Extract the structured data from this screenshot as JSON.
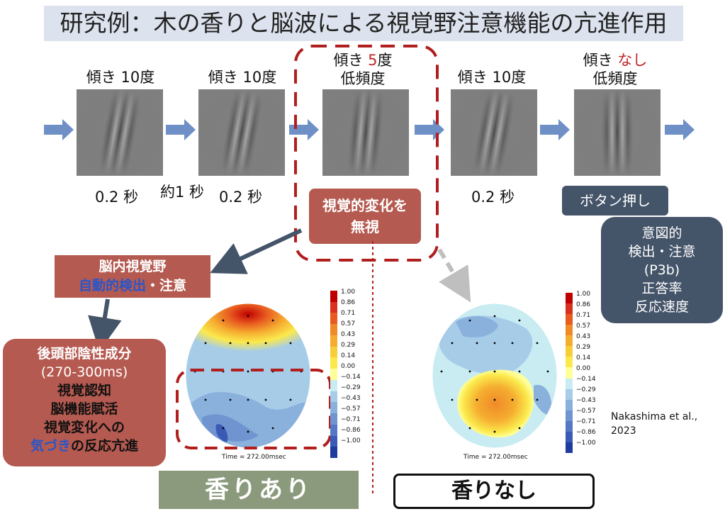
{
  "title": "研究例：木の香りと脳波による視覚野注意機能の亢進作用",
  "stimuli": [
    {
      "caption_prefix": "傾き ",
      "caption_emph": "10",
      "caption_suffix": "度",
      "caption2": ""
    },
    {
      "caption_prefix": "傾き ",
      "caption_emph": "10",
      "caption_suffix": "度",
      "caption2": ""
    },
    {
      "caption_prefix": "傾き ",
      "caption_emph": "5",
      "caption_suffix": "度",
      "caption2": "低頻度"
    },
    {
      "caption_prefix": "傾き ",
      "caption_emph": "10",
      "caption_suffix": "度",
      "caption2": ""
    },
    {
      "caption_prefix": "傾き ",
      "caption_emph": "なし",
      "caption_suffix": "",
      "caption2": "低頻度"
    }
  ],
  "durations": {
    "first": "0.2 秒",
    "interval": "約1 秒",
    "second": "0.2 秒",
    "fourth": "0.2 秒"
  },
  "ignore_box": "視覚的変化を\n無視",
  "button_box": "ボタン押し",
  "intent_box": "意図的\n検出・注意\n(P3b)\n正答率\n反応速度",
  "visual_box": {
    "line1": "脳内視覚野",
    "line2_blue": "自動的検出",
    "line2_rest": "・注意"
  },
  "erp_box": {
    "line1": "後頭部陰性成分",
    "line2": "(270-300ms)",
    "line3": "視覚認知",
    "line4": "脳機能賦活",
    "line5": "視覚変化への",
    "line6_blue": "気づき",
    "line6_rest": "の反応亢進"
  },
  "colorbar_labels": [
    "1.00",
    "0.86",
    "0.71",
    "0.57",
    "0.43",
    "0.29",
    "0.14",
    "0.00",
    "−0.14",
    "−0.29",
    "−0.43",
    "−0.57",
    "−0.71",
    "−0.86",
    "−1.00"
  ],
  "colorbar_colors": [
    "#c00000",
    "#d93020",
    "#e85a20",
    "#f08a28",
    "#f5ad30",
    "#f8cd3a",
    "#fbe94c",
    "#ffff99",
    "#c8ecf2",
    "#a6cce8",
    "#8ab0dc",
    "#7094d0",
    "#5577c4",
    "#3a5ab6",
    "#1d3c9e"
  ],
  "topo_time_label": "Time =    272.00msec",
  "reference": "Nakashima et al.,\n2023",
  "with_scent": "香りあり",
  "without_scent": "香りなし",
  "colors": {
    "arrow": "#6f8fc7",
    "red_accent": "#c0282a",
    "dash_red": "#b01e1e",
    "navy": "#445469",
    "terracotta": "#b55a50",
    "green": "#8b9a7c"
  }
}
